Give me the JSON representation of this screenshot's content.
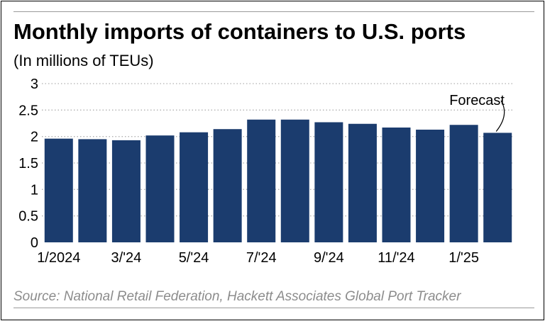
{
  "header": {
    "title": "Monthly imports of containers to U.S. ports",
    "subtitle": "(In millions of TEUs)"
  },
  "footer": {
    "source": "Source: National Retail Federation, Hackett Associates Global Port Tracker"
  },
  "colors": {
    "bar": "#1b3c6e",
    "text": "#000000",
    "gridline": "#b0b0b0",
    "source_text": "#8c8c8c",
    "rule": "#9a9a9a"
  },
  "chart_data": {
    "type": "bar",
    "title": "Monthly imports of containers to U.S. ports",
    "subtitle": "(In millions of TEUs)",
    "categories": [
      "1/2024",
      "2/'24",
      "3/'24",
      "4/'24",
      "5/'24",
      "6/'24",
      "7/'24",
      "8/'24",
      "9/'24",
      "10/'24",
      "11/'24",
      "12/'24",
      "1/'25",
      "2/'25"
    ],
    "tick_labels": [
      "1/2024",
      "",
      "3/'24",
      "",
      "5/'24",
      "",
      "7/'24",
      "",
      "9/'24",
      "",
      "11/'24",
      "",
      "1/'25",
      ""
    ],
    "values": [
      1.96,
      1.95,
      1.93,
      2.02,
      2.08,
      2.14,
      2.32,
      2.32,
      2.27,
      2.24,
      2.17,
      2.13,
      2.22,
      2.07
    ],
    "forecast_index": 13,
    "annotation": "Forecast",
    "xlabel": "",
    "ylabel": "",
    "ylim": [
      0,
      3
    ],
    "yticks": [
      0,
      0.5,
      1,
      1.5,
      2,
      2.5,
      3
    ],
    "ytick_labels": [
      "0",
      "0.5",
      "1",
      "1.5",
      "2",
      "2.5",
      "3"
    ],
    "grid": true
  }
}
